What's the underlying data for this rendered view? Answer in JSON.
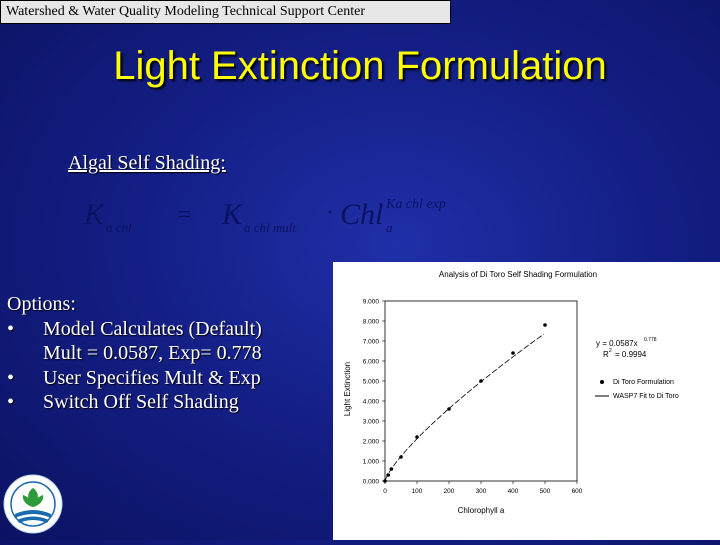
{
  "banner": {
    "text": "Watershed & Water Quality Modeling Technical Support Center"
  },
  "slide": {
    "title": "Light Extinction Formulation",
    "subtitle": "Algal Self Shading:",
    "formula": {
      "lhs_main": "K",
      "lhs_sub": "a chl",
      "equals": "=",
      "rhs_k": "K",
      "rhs_k_sub": "a chl mult",
      "dot": "·",
      "rhs_chl": "Chl",
      "rhs_chl_sub": "a",
      "rhs_exp": "Ka chl exp"
    },
    "options": {
      "heading": "Options:",
      "items": [
        {
          "bullet": "•",
          "text": "Model Calculates (Default)",
          "detail": "Mult = 0.0587, Exp= 0.778"
        },
        {
          "bullet": "•",
          "text": "User Specifies Mult & Exp"
        },
        {
          "bullet": "•",
          "text": "Switch Off Self Shading"
        }
      ]
    }
  },
  "chart_data": {
    "type": "scatter",
    "title": "Analysis of Di Toro Self Shading Formulation",
    "xlabel": "Chlorophyll a",
    "ylabel": "Light Extinction",
    "xlim": [
      0,
      600
    ],
    "ylim": [
      0,
      9
    ],
    "x_ticks": [
      "0",
      "100",
      "200",
      "300",
      "400",
      "500",
      "600"
    ],
    "y_ticks": [
      "0.000",
      "1.000",
      "2.000",
      "3.000",
      "4.000",
      "5.000",
      "6.000",
      "7.000",
      "8.000",
      "9.000"
    ],
    "series": [
      {
        "name": "Di Toro Formulation",
        "marker": "dot",
        "x": [
          0,
          10,
          20,
          50,
          100,
          200,
          300,
          400,
          500
        ],
        "y": [
          0.0,
          0.3,
          0.6,
          1.2,
          2.2,
          3.6,
          5.0,
          6.4,
          7.8
        ]
      }
    ],
    "fit": {
      "name": "WASP7 Fit to Di Toro",
      "mult": 0.0587,
      "exp": 0.778,
      "equation_label": "y = 0.0587x",
      "equation_exp": "0.778",
      "r2_label": "R",
      "r2_exp": "2",
      "r2_value": "= 0.9994"
    },
    "legend_position": "right",
    "grid": false
  }
}
